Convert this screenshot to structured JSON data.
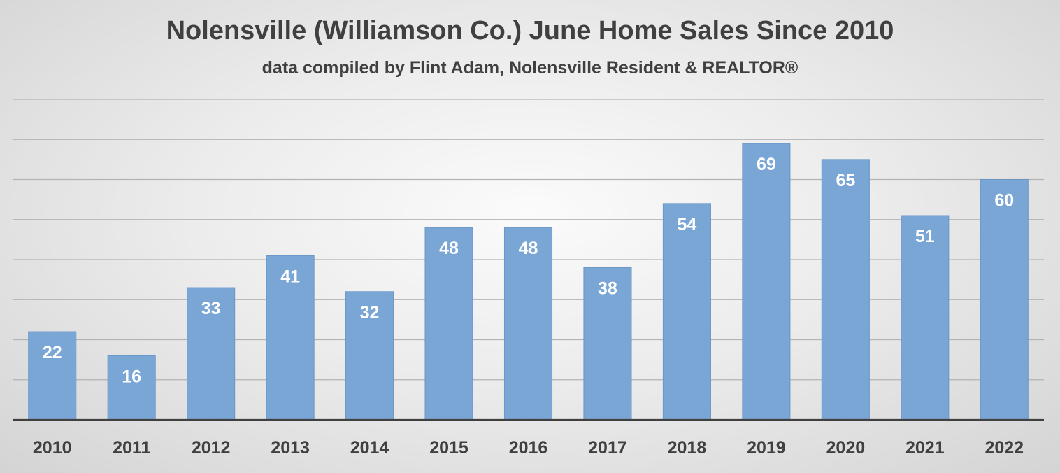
{
  "chart_data": {
    "type": "bar",
    "title": "Nolensville (Williamson Co.) June Home Sales Since 2010",
    "subtitle": "data compiled by Flint Adam, Nolensville Resident & REALTOR®",
    "xlabel": "",
    "ylabel": "",
    "categories": [
      "2010",
      "2011",
      "2012",
      "2013",
      "2014",
      "2015",
      "2016",
      "2017",
      "2018",
      "2019",
      "2020",
      "2021",
      "2022"
    ],
    "values": [
      22,
      16,
      33,
      41,
      32,
      48,
      48,
      38,
      54,
      69,
      65,
      51,
      60
    ],
    "ylim": [
      0,
      80
    ],
    "y_gridline_step": 10,
    "grid": true,
    "y_tick_labels_shown": false,
    "data_labels": "inside-end",
    "legend": "none",
    "bar_color": "#7aa6d6",
    "bar_edge_color": "#6a96c8",
    "label_color": "#ffffff",
    "axis_text_color": "#404040",
    "gridline_color": "#b3b3b3",
    "axis_color": "#404040"
  }
}
